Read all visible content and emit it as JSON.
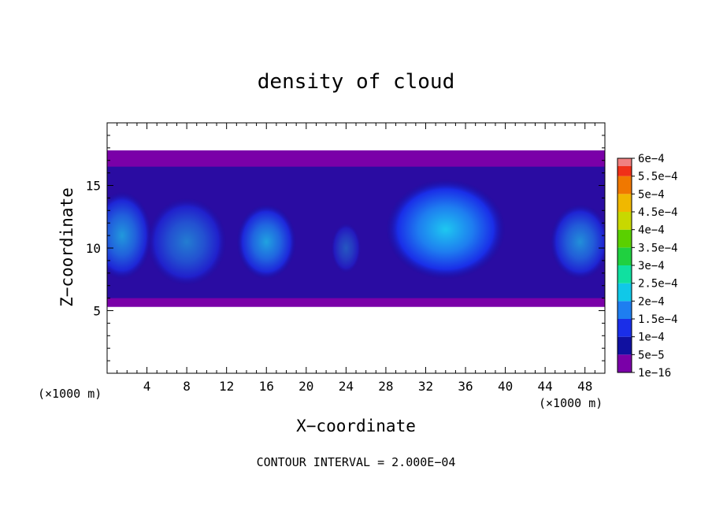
{
  "chart_data": {
    "type": "heatmap",
    "title": "density of cloud",
    "xlabel": "X−coordinate",
    "ylabel": "Z−coordinate",
    "x_unit": "(×1000 m)",
    "y_unit": "(×1000 m)",
    "xlim": [
      0,
      50
    ],
    "ylim": [
      0,
      20
    ],
    "xticks": [
      4,
      8,
      12,
      16,
      20,
      24,
      28,
      32,
      36,
      40,
      44,
      48
    ],
    "yticks": [
      5,
      10,
      15
    ],
    "cloud_layer_z": [
      5.3,
      17.8
    ],
    "cloud_cores": [
      {
        "x": 1.5,
        "z": 11.0,
        "rx": 3.0,
        "rz": 3.5,
        "value": 0.00015
      },
      {
        "x": 8.0,
        "z": 10.5,
        "rx": 4.0,
        "rz": 3.5,
        "value": 0.00012
      },
      {
        "x": 16.0,
        "z": 10.5,
        "rx": 3.0,
        "rz": 3.0,
        "value": 0.00016
      },
      {
        "x": 24.0,
        "z": 10.0,
        "rx": 1.5,
        "rz": 2.0,
        "value": 8e-05
      },
      {
        "x": 34.0,
        "z": 11.5,
        "rx": 6.0,
        "rz": 4.0,
        "value": 0.0002
      },
      {
        "x": 47.5,
        "z": 10.5,
        "rx": 3.0,
        "rz": 3.0,
        "value": 0.00014
      }
    ],
    "colorbar": {
      "labels": [
        "1e−16",
        "5e−5",
        "1e−4",
        "1.5e−4",
        "2e−4",
        "2.5e−4",
        "3e−4",
        "3.5e−4",
        "4e−4",
        "4.5e−4",
        "5e−4",
        "5.5e−4",
        "6e−4"
      ],
      "colors": [
        "#7a00a8",
        "#1010a0",
        "#1a2ee8",
        "#1e7ef0",
        "#10c8e8",
        "#10e0a0",
        "#20d040",
        "#5ad000",
        "#c8d800",
        "#f0b800",
        "#f07800",
        "#f03018",
        "#f08080"
      ]
    },
    "footer": "CONTOUR INTERVAL = 2.000E−04"
  }
}
